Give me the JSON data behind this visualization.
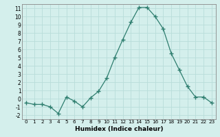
{
  "x": [
    0,
    1,
    2,
    3,
    4,
    5,
    6,
    7,
    8,
    9,
    10,
    11,
    12,
    13,
    14,
    15,
    16,
    17,
    18,
    19,
    20,
    21,
    22,
    23
  ],
  "y": [
    -0.5,
    -0.7,
    -0.7,
    -1.0,
    -1.8,
    0.2,
    -0.3,
    -1.0,
    0.1,
    0.9,
    2.5,
    5.0,
    7.2,
    9.3,
    11.1,
    11.1,
    10.0,
    8.5,
    5.5,
    3.5,
    1.5,
    0.2,
    0.2,
    -0.5
  ],
  "line_color": "#2d7d6e",
  "marker": "+",
  "marker_size": 4,
  "marker_lw": 1.0,
  "bg_color": "#d4efec",
  "grid_color": "#b8ddd9",
  "xlabel": "Humidex (Indice chaleur)",
  "xlim": [
    -0.5,
    23.5
  ],
  "ylim": [
    -2.5,
    11.5
  ],
  "xticks": [
    0,
    1,
    2,
    3,
    4,
    5,
    6,
    7,
    8,
    9,
    10,
    11,
    12,
    13,
    14,
    15,
    16,
    17,
    18,
    19,
    20,
    21,
    22,
    23
  ],
  "yticks": [
    -2,
    -1,
    0,
    1,
    2,
    3,
    4,
    5,
    6,
    7,
    8,
    9,
    10,
    11
  ],
  "xtick_fontsize": 5.2,
  "ytick_fontsize": 5.5,
  "xlabel_fontsize": 6.5,
  "line_width": 0.9
}
